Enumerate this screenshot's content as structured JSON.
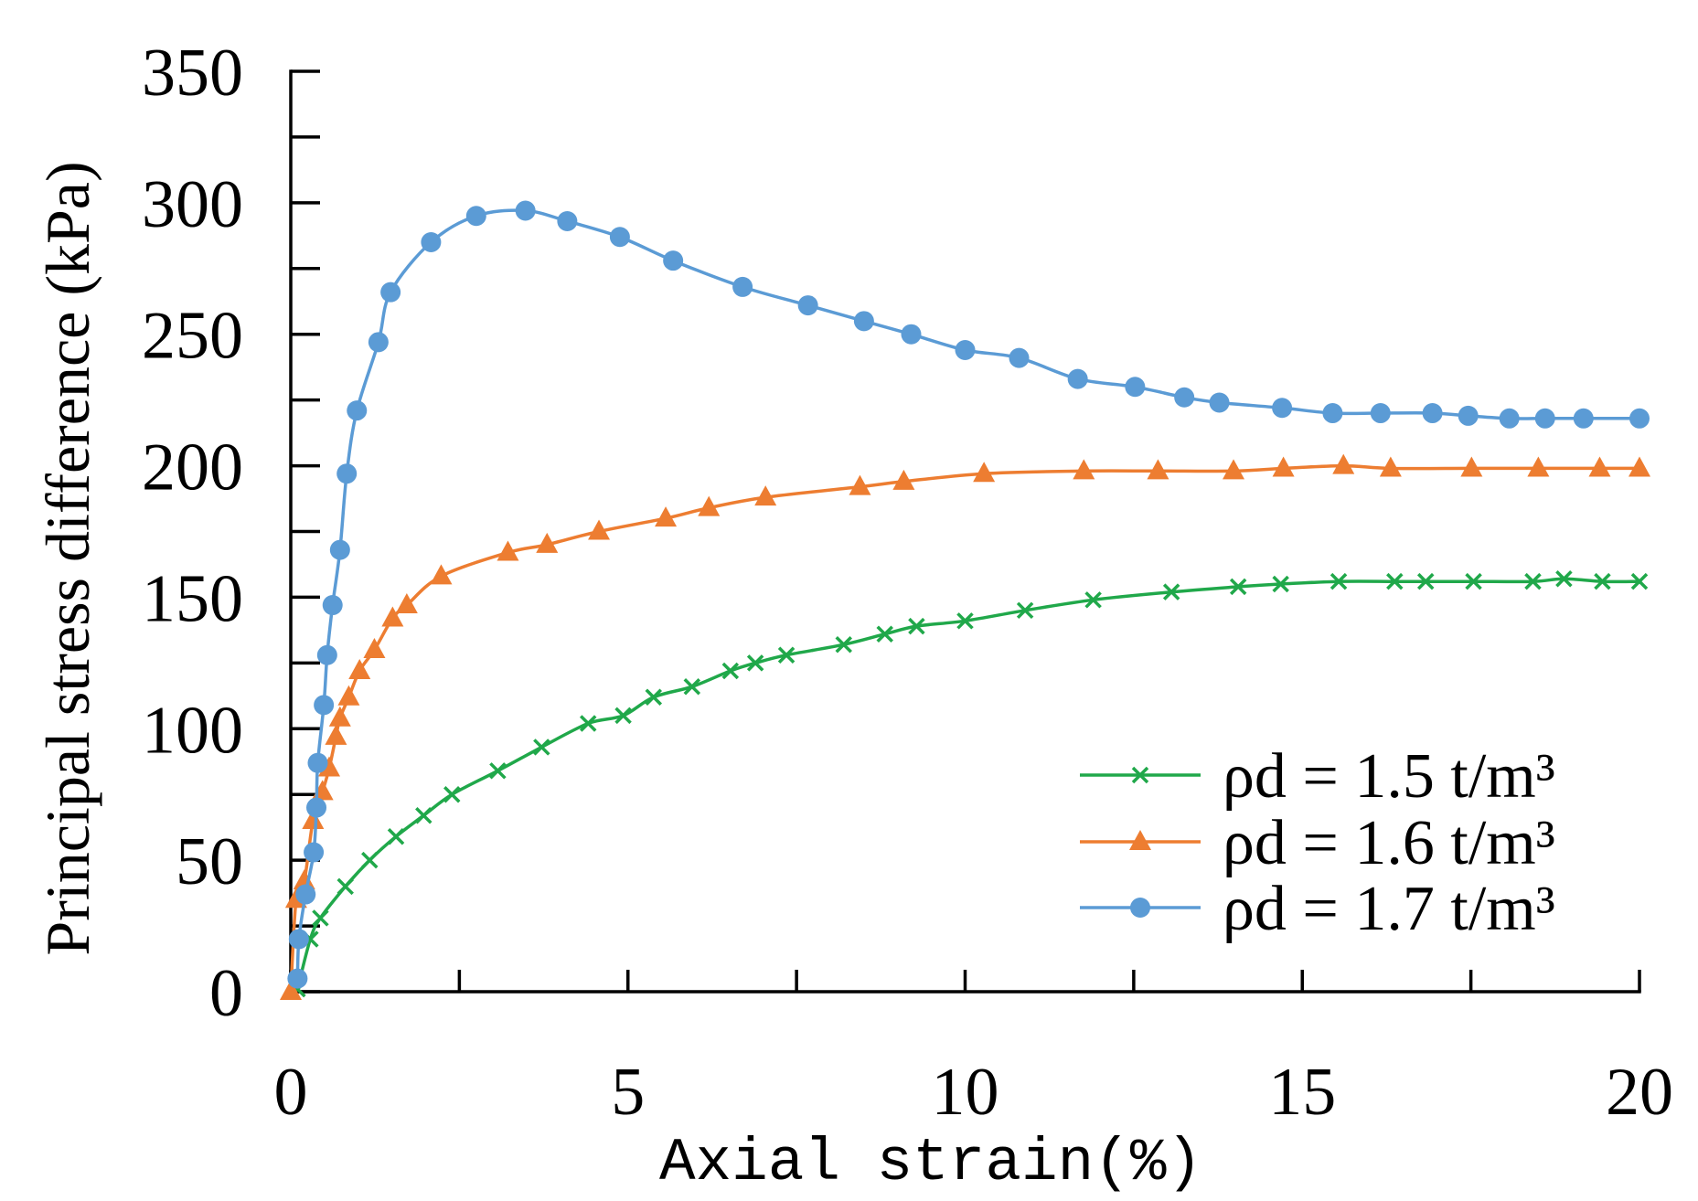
{
  "chart_data": {
    "type": "line",
    "title": "",
    "xlabel": "Axial strain(%)",
    "ylabel": "Principal stress difference (kPa)",
    "xlim": [
      0,
      20
    ],
    "ylim": [
      0,
      350
    ],
    "xticks": [
      0,
      5,
      10,
      15,
      20
    ],
    "yticks": [
      0,
      50,
      100,
      150,
      200,
      250,
      300,
      350
    ],
    "grid": false,
    "legend_position": "bottom-right",
    "series": [
      {
        "name": "ρd = 1.5 t/m³",
        "color": "#20A84A",
        "marker": "x",
        "x": [
          0.1,
          0.29,
          0.44,
          0.81,
          1.17,
          1.56,
          1.97,
          2.39,
          3.07,
          3.72,
          4.41,
          4.93,
          5.38,
          5.95,
          6.52,
          6.89,
          7.35,
          8.2,
          8.81,
          9.28,
          10.0,
          10.89,
          11.9,
          13.06,
          14.05,
          14.68,
          15.54,
          16.37,
          16.83,
          17.54,
          18.42,
          18.88,
          19.45,
          20.0
        ],
        "y": [
          1,
          20,
          28,
          40,
          50,
          59,
          67,
          75,
          84,
          93,
          102,
          105,
          112,
          116,
          122,
          125,
          128,
          132,
          136,
          139,
          141,
          145,
          149,
          152,
          154,
          155,
          156,
          156,
          156,
          156,
          156,
          157,
          156,
          156
        ]
      },
      {
        "name": "ρd = 1.6 t/m³",
        "color": "#ED7D31",
        "marker": "triangle",
        "x": [
          0,
          0.08,
          0.2,
          0.33,
          0.47,
          0.57,
          0.67,
          0.73,
          0.86,
          1.02,
          1.24,
          1.51,
          1.72,
          2.23,
          3.22,
          3.8,
          4.57,
          5.56,
          6.2,
          7.04,
          8.44,
          9.09,
          10.28,
          11.76,
          12.86,
          13.98,
          14.72,
          15.61,
          16.31,
          17.51,
          18.5,
          19.41,
          20.0
        ],
        "y": [
          0,
          35,
          42,
          65,
          76,
          85,
          97,
          104,
          112,
          122,
          130,
          142,
          147,
          158,
          167,
          170,
          175,
          180,
          184,
          188,
          192,
          194,
          197,
          198,
          198,
          198,
          199,
          200,
          199,
          199,
          199,
          199,
          199
        ]
      },
      {
        "name": "ρd = 1.7 t/m³",
        "color": "#5B9BD5",
        "marker": "circle",
        "x": [
          0.1,
          0.12,
          0.22,
          0.34,
          0.38,
          0.4,
          0.49,
          0.54,
          0.62,
          0.73,
          0.83,
          0.98,
          1.3,
          1.48,
          2.08,
          2.75,
          3.48,
          4.1,
          4.88,
          5.67,
          6.7,
          7.67,
          8.5,
          9.2,
          10.0,
          10.8,
          11.67,
          12.52,
          13.25,
          13.77,
          14.7,
          15.45,
          16.16,
          16.93,
          17.46,
          18.07,
          18.6,
          19.17,
          20.0
        ],
        "y": [
          5,
          20,
          37,
          53,
          70,
          87,
          109,
          128,
          147,
          168,
          197,
          221,
          247,
          266,
          285,
          295,
          297,
          293,
          287,
          278,
          268,
          261,
          255,
          250,
          244,
          241,
          233,
          230,
          226,
          224,
          222,
          220,
          220,
          220,
          219,
          218,
          218,
          218,
          218
        ]
      }
    ]
  }
}
